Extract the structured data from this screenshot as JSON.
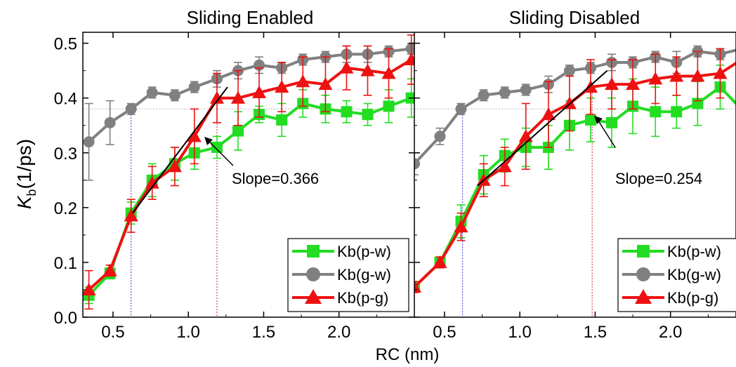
{
  "chart_data": {
    "type": "line",
    "ylabel_main": "K",
    "ylabel_sub": "b",
    "ylabel_unit": "(1/ps)",
    "xlabel": "RC (nm)",
    "ylim": [
      0,
      0.52
    ],
    "yticks": [
      "0.0",
      "0.1",
      "0.2",
      "0.3",
      "0.4",
      "0.5"
    ],
    "xticks": [
      "0.5",
      "1.0",
      "1.5",
      "2.0"
    ],
    "reference_y": 0.38,
    "colors": {
      "p-w": "#22dd22",
      "g-w": "#808080",
      "p-g": "#ee1111",
      "slope": "#000000",
      "ref_blue": "#3333cc",
      "ref_red": "#cc2222",
      "ref_gray": "#bbbbbb"
    },
    "legend": [
      "Kb(p-w)",
      "Kb(g-w)",
      "Kb(p-g)"
    ],
    "panels": [
      {
        "title": "Sliding Enabled",
        "xlim": [
          0.3,
          2.5
        ],
        "annotation": "Slope=0.366",
        "ref_x_blue": 0.62,
        "ref_x_red": 1.19,
        "slope_line": [
          [
            0.63,
            0.19
          ],
          [
            1.26,
            0.42
          ]
        ],
        "series": [
          {
            "key": "p-w",
            "marker": "square",
            "x": [
              0.34,
              0.48,
              0.62,
              0.76,
              0.91,
              1.04,
              1.19,
              1.33,
              1.47,
              1.62,
              1.76,
              1.91,
              2.05,
              2.19,
              2.33,
              2.48
            ],
            "y": [
              0.04,
              0.08,
              0.19,
              0.25,
              0.28,
              0.3,
              0.31,
              0.34,
              0.37,
              0.36,
              0.39,
              0.38,
              0.375,
              0.37,
              0.385,
              0.4
            ],
            "err": [
              0.015,
              0.01,
              0.02,
              0.03,
              0.03,
              0.03,
              0.02,
              0.035,
              0.015,
              0.03,
              0.025,
              0.025,
              0.02,
              0.02,
              0.03,
              0.035
            ]
          },
          {
            "key": "g-w",
            "marker": "circle",
            "x": [
              0.34,
              0.48,
              0.62,
              0.76,
              0.91,
              1.04,
              1.19,
              1.33,
              1.47,
              1.62,
              1.76,
              1.91,
              2.05,
              2.19,
              2.33,
              2.48
            ],
            "y": [
              0.32,
              0.355,
              0.38,
              0.41,
              0.405,
              0.42,
              0.435,
              0.45,
              0.46,
              0.455,
              0.47,
              0.475,
              0.48,
              0.48,
              0.485,
              0.49
            ],
            "err": [
              0.07,
              0.04,
              0.01,
              0.01,
              0.01,
              0.01,
              0.015,
              0.015,
              0.015,
              0.01,
              0.01,
              0.01,
              0.015,
              0.015,
              0.01,
              0.01
            ]
          },
          {
            "key": "p-g",
            "marker": "triangle",
            "x": [
              0.34,
              0.48,
              0.62,
              0.76,
              0.91,
              1.04,
              1.19,
              1.33,
              1.47,
              1.62,
              1.76,
              1.91,
              2.05,
              2.19,
              2.33,
              2.48
            ],
            "y": [
              0.05,
              0.085,
              0.185,
              0.245,
              0.275,
              0.33,
              0.4,
              0.4,
              0.41,
              0.42,
              0.43,
              0.425,
              0.455,
              0.45,
              0.445,
              0.47
            ],
            "err": [
              0.035,
              0.01,
              0.03,
              0.03,
              0.035,
              0.05,
              0.045,
              0.05,
              0.045,
              0.045,
              0.045,
              0.05,
              0.04,
              0.045,
              0.045,
              0.045
            ]
          }
        ]
      },
      {
        "title": "Sliding Disabled",
        "xlim": [
          0.3,
          2.5
        ],
        "annotation": "Slope=0.254",
        "ref_x_blue": 0.62,
        "ref_x_red": 1.48,
        "slope_line": [
          [
            0.72,
            0.24
          ],
          [
            1.58,
            0.45
          ]
        ],
        "series": [
          {
            "key": "p-w",
            "marker": "square",
            "x": [
              0.3,
              0.47,
              0.61,
              0.76,
              0.9,
              1.04,
              1.19,
              1.33,
              1.47,
              1.61,
              1.75,
              1.9,
              2.04,
              2.18,
              2.33,
              2.47
            ],
            "y": [
              0.055,
              0.1,
              0.175,
              0.26,
              0.295,
              0.31,
              0.31,
              0.35,
              0.36,
              0.355,
              0.385,
              0.375,
              0.375,
              0.39,
              0.42,
              0.38
            ],
            "err": [
              0.01,
              0.01,
              0.03,
              0.035,
              0.03,
              0.035,
              0.04,
              0.045,
              0.04,
              0.045,
              0.05,
              0.045,
              0.03,
              0.04,
              0.04,
              0.045
            ]
          },
          {
            "key": "g-w",
            "marker": "circle",
            "x": [
              0.3,
              0.47,
              0.61,
              0.76,
              0.9,
              1.04,
              1.19,
              1.33,
              1.47,
              1.61,
              1.75,
              1.9,
              2.04,
              2.18,
              2.33,
              2.47
            ],
            "y": [
              0.28,
              0.33,
              0.38,
              0.405,
              0.41,
              0.415,
              0.425,
              0.45,
              0.455,
              0.465,
              0.465,
              0.475,
              0.465,
              0.485,
              0.48,
              0.49
            ],
            "err": [
              0.02,
              0.015,
              0.01,
              0.01,
              0.01,
              0.01,
              0.015,
              0.01,
              0.01,
              0.015,
              0.01,
              0.01,
              0.02,
              0.01,
              0.01,
              0.01
            ]
          },
          {
            "key": "p-g",
            "marker": "triangle",
            "x": [
              0.3,
              0.47,
              0.61,
              0.76,
              0.9,
              1.04,
              1.19,
              1.33,
              1.47,
              1.61,
              1.75,
              1.9,
              2.04,
              2.18,
              2.33,
              2.47
            ],
            "y": [
              0.055,
              0.1,
              0.165,
              0.25,
              0.275,
              0.33,
              0.37,
              0.39,
              0.42,
              0.425,
              0.425,
              0.435,
              0.44,
              0.44,
              0.445,
              0.47
            ],
            "err": [
              0.01,
              0.01,
              0.025,
              0.03,
              0.035,
              0.06,
              0.06,
              0.05,
              0.05,
              0.045,
              0.045,
              0.045,
              0.035,
              0.045,
              0.045,
              0.04
            ]
          }
        ]
      }
    ]
  }
}
